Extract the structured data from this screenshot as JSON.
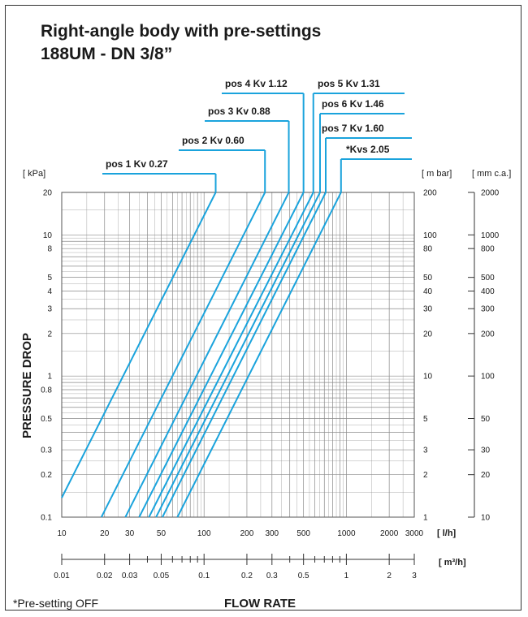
{
  "title": {
    "line1": "Right-angle body with pre-settings",
    "line2": "188UM - DN 3/8”"
  },
  "footnote": "*Pre-setting OFF",
  "chart_data": {
    "type": "line",
    "title": "Right-angle body with pre-settings 188UM - DN 3/8”",
    "xlabel": "FLOW RATE",
    "ylabel": "PRESSURE DROP",
    "x_scale": "log",
    "y_scale": "log",
    "xlim": [
      10,
      3000
    ],
    "ylim": [
      0.1,
      20
    ],
    "grid": true,
    "x_unit": "[ l/h]",
    "x2_unit": "[ m³/h]",
    "y_unit_left": "[ kPa]",
    "y_unit_right1": "[ m bar]",
    "y_unit_right2": "[ mm c.a.]",
    "x_ticks": [
      "10",
      "20",
      "30",
      "50",
      "100",
      "200",
      "300",
      "500",
      "1000",
      "2000",
      "3000"
    ],
    "x_tick_values": [
      10,
      20,
      30,
      50,
      100,
      200,
      300,
      500,
      1000,
      2000,
      3000
    ],
    "x2_ticks": [
      "0.01",
      "0.02",
      "0.03",
      "0.05",
      "0.1",
      "0.2",
      "0.3",
      "0.5",
      "1",
      "2",
      "3"
    ],
    "x2_minor_values": [
      40,
      60,
      70,
      80,
      90,
      400,
      600,
      700,
      800,
      900
    ],
    "y_ticks": [
      "20",
      "10",
      "8",
      "5",
      "4",
      "3",
      "2",
      "1",
      "0.8",
      "0.5",
      "0.3",
      "0.2",
      "0.1"
    ],
    "y_tick_values": [
      20,
      10,
      8,
      5,
      4,
      3,
      2,
      1,
      0.8,
      0.5,
      0.3,
      0.2,
      0.1
    ],
    "y_mbar_ticks": [
      "200",
      "100",
      "80",
      "50",
      "40",
      "30",
      "20",
      "10",
      "5",
      "3",
      "2",
      "1"
    ],
    "y_mbar_values": [
      20,
      10,
      8,
      5,
      4,
      3,
      2,
      1,
      0.5,
      0.3,
      0.2,
      0.1
    ],
    "y_mmca_ticks": [
      "2000",
      "1000",
      "800",
      "500",
      "400",
      "300",
      "200",
      "100",
      "50",
      "30",
      "20",
      "10"
    ],
    "y_mmca_values": [
      20,
      10,
      8,
      5,
      4,
      3,
      2,
      1,
      0.5,
      0.3,
      0.2,
      0.1
    ],
    "series": [
      {
        "name": "pos 1 Kv 0.27",
        "kv": 0.27,
        "x": [
          10,
          120.7
        ],
        "y": [
          0.137,
          20
        ]
      },
      {
        "name": "pos 2 Kv 0.60",
        "kv": 0.6,
        "x": [
          19,
          268
        ],
        "y": [
          0.1,
          20
        ]
      },
      {
        "name": "pos 3 Kv 0.88",
        "kv": 0.88,
        "x": [
          28,
          394
        ],
        "y": [
          0.1,
          20
        ]
      },
      {
        "name": "pos 4 Kv 1.12",
        "kv": 1.12,
        "x": [
          35,
          500
        ],
        "y": [
          0.1,
          20
        ]
      },
      {
        "name": "pos 5 Kv 1.31",
        "kv": 1.31,
        "x": [
          41,
          586
        ],
        "y": [
          0.1,
          20
        ]
      },
      {
        "name": "pos 6 Kv 1.46",
        "kv": 1.46,
        "x": [
          46,
          653
        ],
        "y": [
          0.1,
          20
        ]
      },
      {
        "name": "pos 7 Kv 1.60",
        "kv": 1.6,
        "x": [
          51,
          716
        ],
        "y": [
          0.1,
          20
        ]
      },
      {
        "name": "*Kvs 2.05",
        "kv": 2.05,
        "x": [
          65,
          917
        ],
        "y": [
          0.1,
          20
        ]
      }
    ],
    "line_color": "#1aa3dc",
    "grid_color": "#8a8a8a"
  }
}
